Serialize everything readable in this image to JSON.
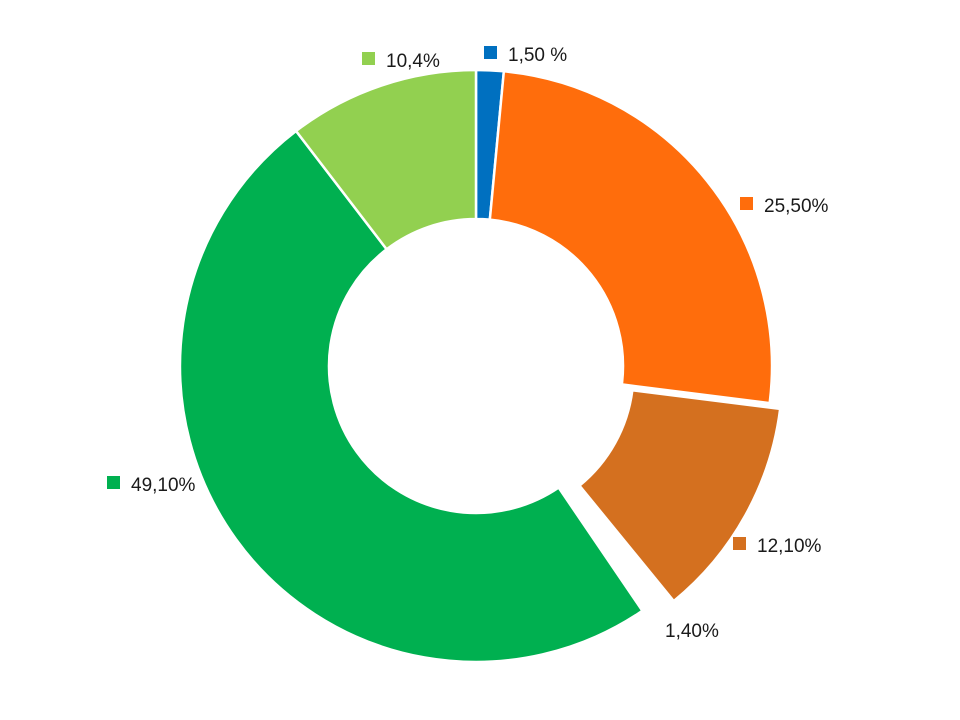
{
  "chart_data": {
    "type": "pie",
    "variant": "donut",
    "start_angle_deg": 0,
    "direction": "clockwise",
    "slices": [
      {
        "value": 1.5,
        "label": "1,50 %",
        "color": "#0070C0",
        "marker": true
      },
      {
        "value": 25.5,
        "label": "25,50%",
        "color": "#FF6D0C",
        "marker": true
      },
      {
        "value": 12.1,
        "label": "12,10%",
        "color": "#D4701F",
        "marker": true
      },
      {
        "value": 1.4,
        "label": "1,40%",
        "color": "#FFFFFF",
        "marker": false
      },
      {
        "value": 49.1,
        "label": "49,10%",
        "color": "#00B050",
        "marker": true
      },
      {
        "value": 10.4,
        "label": "10,4%",
        "color": "#92D050",
        "marker": true
      }
    ]
  }
}
